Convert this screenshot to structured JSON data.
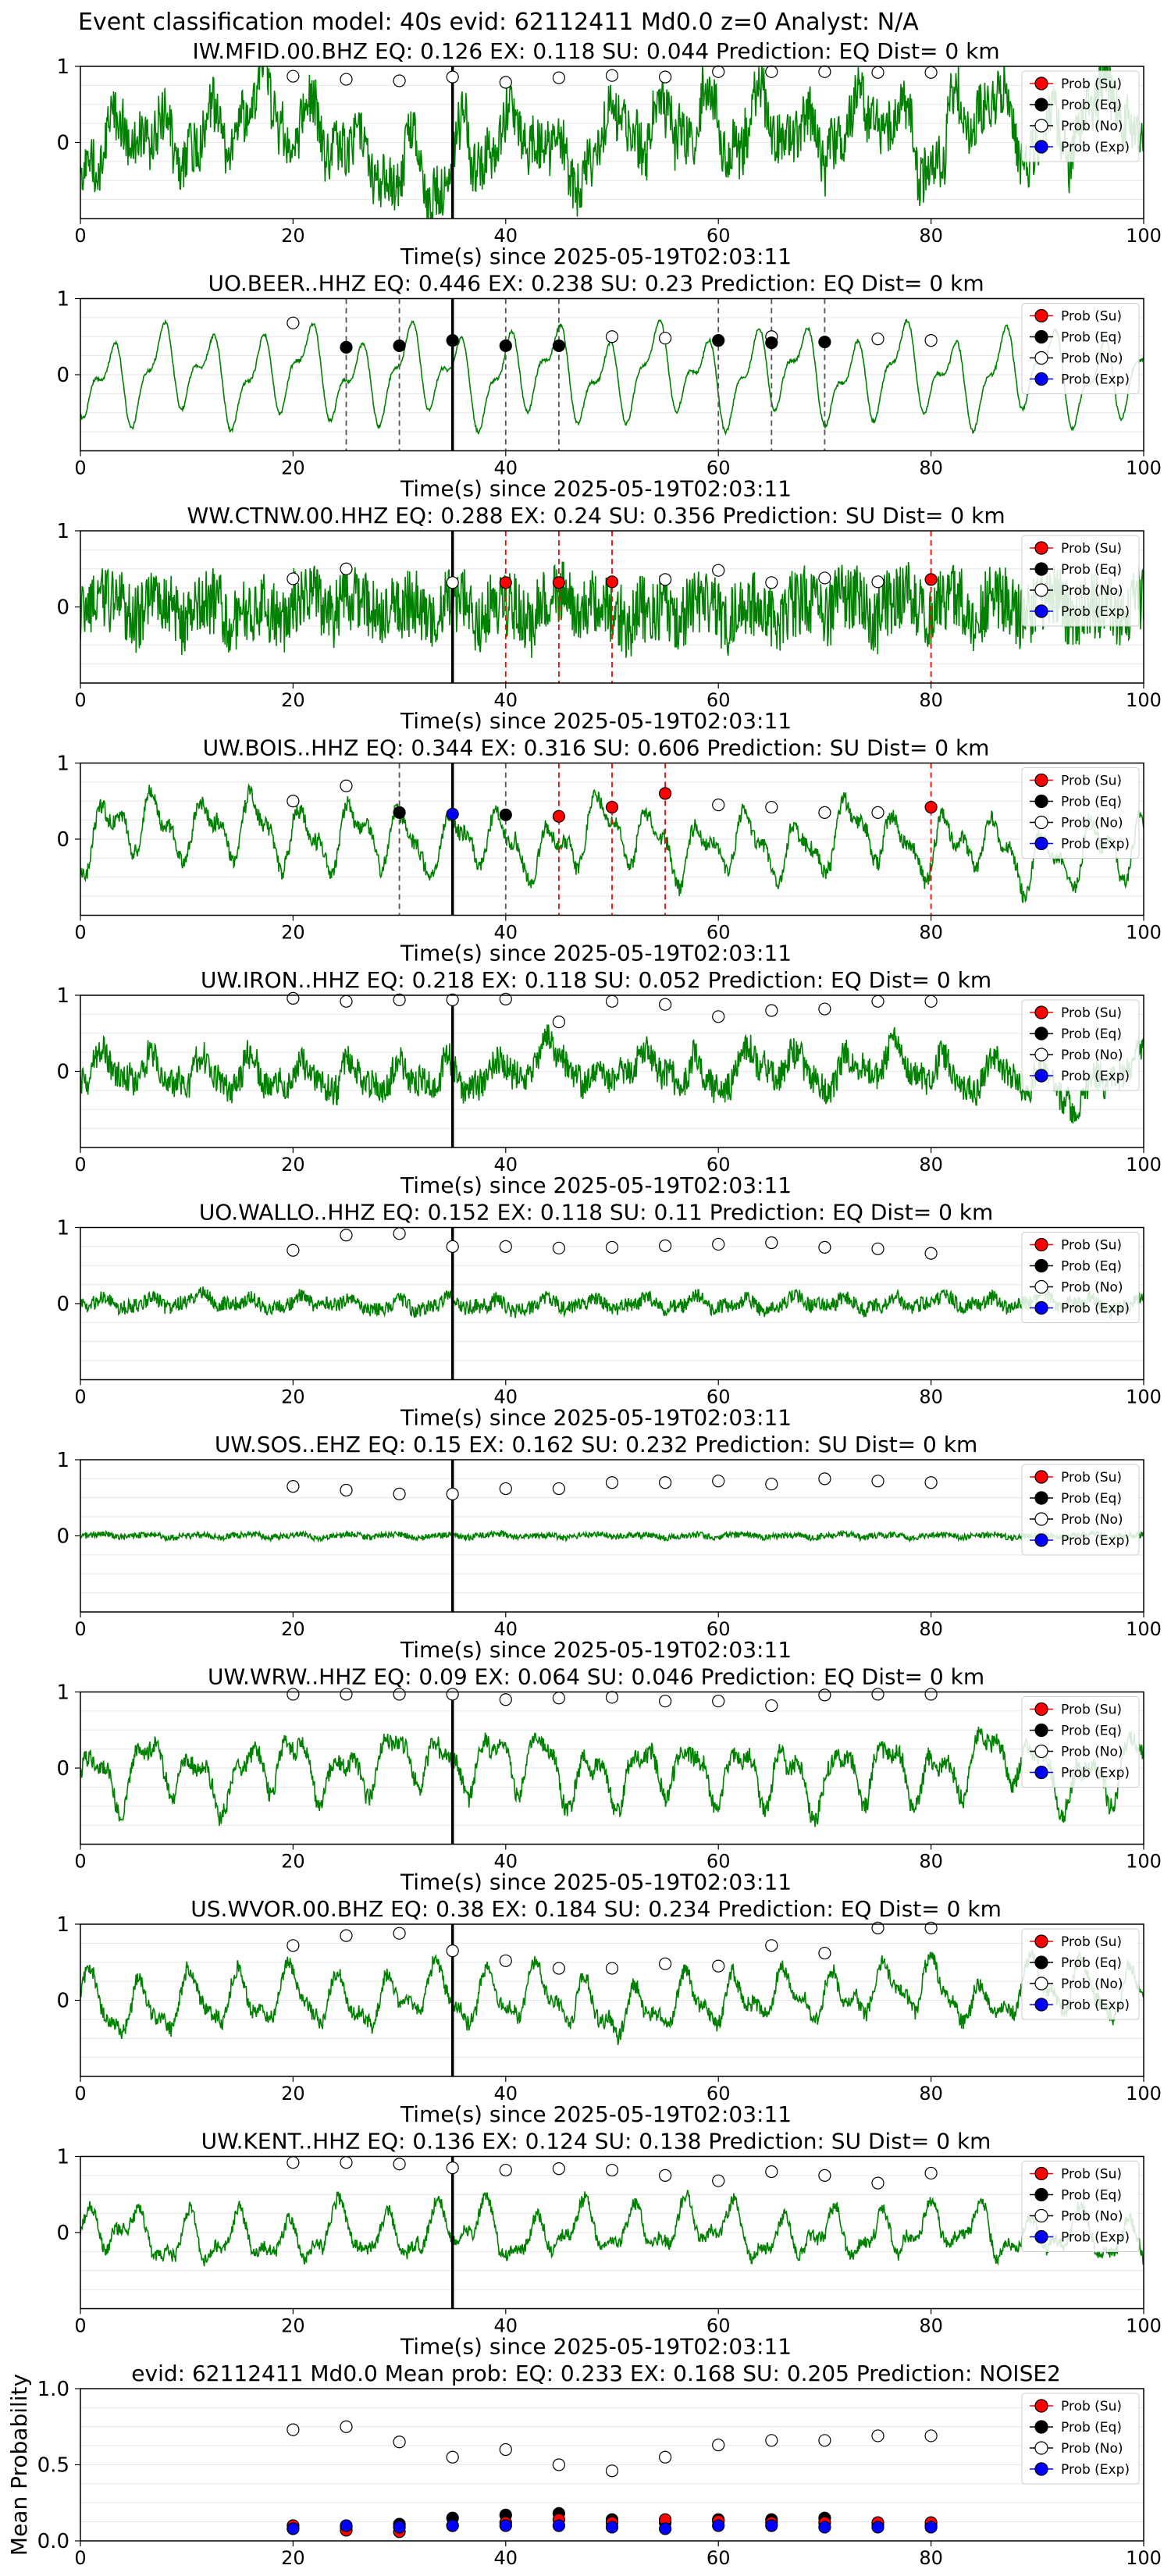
{
  "suptitle": "Event classification model: 40s evid: 62112411 Md0.0 z=0 Analyst: N/A",
  "colors": {
    "waveform": "#008000",
    "su": "#ff0000",
    "eq": "#000000",
    "no": "#ffffff",
    "exp": "#0000ff",
    "eq_pick_line": "#555555",
    "su_pick_line": "#ff0000",
    "origin_line": "#000000"
  },
  "legend_labels": [
    "Prob (Su)",
    "Prob (Eq)",
    "Prob (No)",
    "Prob (Exp)"
  ],
  "chart_data": [
    {
      "type": "line",
      "title": "IW.MFID.00.BHZ   EQ: 0.126  EX: 0.118  SU: 0.044   Prediction: EQ    Dist= 0 km",
      "xlabel": "Time(s) since 2025-05-19T02:03:11",
      "xlim": [
        0,
        100
      ],
      "ylim": [
        -1,
        1
      ],
      "xticks": [
        0,
        20,
        40,
        60,
        80,
        100
      ],
      "yticks": [
        0,
        1
      ],
      "origin_time": 35,
      "style": {
        "amp": 0.5,
        "noise": 0.45,
        "lowfreq": 0.25
      },
      "prob_times": [
        20,
        25,
        30,
        35,
        40,
        45,
        50,
        55,
        60,
        65,
        70,
        75,
        80
      ],
      "prob_no": [
        0.87,
        0.83,
        0.81,
        0.86,
        0.79,
        0.85,
        0.88,
        0.86,
        0.93,
        0.93,
        0.93,
        0.92,
        0.92
      ],
      "prob_eq": [],
      "prob_su": [],
      "prob_exp": [],
      "eq_picks": [],
      "su_picks": [],
      "legend": "upper right"
    },
    {
      "type": "line",
      "title": "UO.BEER..HHZ   EQ: 0.446  EX: 0.238  SU: 0.23   Prediction: EQ    Dist= 0 km",
      "xlabel": "Time(s) since 2025-05-19T02:03:11",
      "xlim": [
        0,
        100
      ],
      "ylim": [
        -1,
        1
      ],
      "xticks": [
        0,
        20,
        40,
        60,
        80,
        100
      ],
      "yticks": [
        0,
        1
      ],
      "origin_time": 35,
      "style": {
        "amp": 0.75,
        "noise": 0.03,
        "lowfreq": 0.0
      },
      "prob_times": [
        20,
        50,
        55,
        65,
        75,
        80
      ],
      "prob_no": [
        0.68,
        0.5,
        0.48,
        0.5,
        0.47,
        0.45
      ],
      "eq_picks": [
        25,
        30,
        40,
        45,
        60,
        65,
        70
      ],
      "prob_eq": [
        [
          25,
          0.36
        ],
        [
          30,
          0.38
        ],
        [
          35,
          0.45
        ],
        [
          40,
          0.38
        ],
        [
          45,
          0.38
        ],
        [
          60,
          0.45
        ],
        [
          65,
          0.42
        ],
        [
          70,
          0.43
        ]
      ],
      "prob_su": [],
      "prob_exp": [],
      "su_picks": [],
      "legend": "upper right"
    },
    {
      "type": "line",
      "title": "WW.CTNW.00.HHZ   EQ: 0.288  EX: 0.24  SU: 0.356   Prediction: SU    Dist= 0 km",
      "xlabel": "Time(s) since 2025-05-19T02:03:11",
      "xlim": [
        0,
        100
      ],
      "ylim": [
        -1,
        1
      ],
      "xticks": [
        0,
        20,
        40,
        60,
        80,
        100
      ],
      "yticks": [
        0,
        1
      ],
      "origin_time": 35,
      "style": {
        "amp": 0.2,
        "noise": 0.55,
        "lowfreq": 0.05
      },
      "prob_times": [
        20,
        25,
        35,
        55,
        60,
        65,
        70,
        75
      ],
      "prob_no": [
        0.37,
        0.5,
        0.32,
        0.36,
        0.48,
        0.32,
        0.38,
        0.33
      ],
      "eq_picks": [],
      "prob_eq": [],
      "su_picks": [
        40,
        45,
        50,
        80
      ],
      "prob_su": [
        [
          40,
          0.32
        ],
        [
          45,
          0.32
        ],
        [
          50,
          0.33
        ],
        [
          80,
          0.36
        ]
      ],
      "prob_exp": [],
      "legend": "upper right"
    },
    {
      "type": "line",
      "title": "UW.BOIS..HHZ   EQ: 0.344  EX: 0.316  SU: 0.606   Prediction: SU    Dist= 0 km",
      "xlabel": "Time(s) since 2025-05-19T02:03:11",
      "xlim": [
        0,
        100
      ],
      "ylim": [
        -1,
        1
      ],
      "xticks": [
        0,
        20,
        40,
        60,
        80,
        100
      ],
      "yticks": [
        0,
        1
      ],
      "origin_time": 35,
      "style": {
        "amp": 0.55,
        "noise": 0.12,
        "lowfreq": 0.1
      },
      "prob_times": [
        20,
        25,
        60,
        65,
        70,
        75
      ],
      "prob_no": [
        0.5,
        0.7,
        0.45,
        0.42,
        0.35,
        0.35
      ],
      "eq_picks": [
        30,
        40
      ],
      "prob_eq": [
        [
          30,
          0.35
        ],
        [
          40,
          0.32
        ]
      ],
      "su_picks": [
        45,
        50,
        55,
        80
      ],
      "prob_su": [
        [
          45,
          0.3
        ],
        [
          50,
          0.42
        ],
        [
          55,
          0.6
        ],
        [
          80,
          0.42
        ]
      ],
      "prob_exp": [
        [
          35,
          0.33
        ]
      ],
      "legend": "upper right"
    },
    {
      "type": "line",
      "title": "UW.IRON..HHZ   EQ: 0.218  EX: 0.118  SU: 0.052   Prediction: EQ    Dist= 0 km",
      "xlabel": "Time(s) since 2025-05-19T02:03:11",
      "xlim": [
        0,
        100
      ],
      "ylim": [
        -1,
        1
      ],
      "xticks": [
        0,
        20,
        40,
        60,
        80,
        100
      ],
      "yticks": [
        0,
        1
      ],
      "origin_time": 35,
      "style": {
        "amp": 0.28,
        "noise": 0.25,
        "lowfreq": 0.1
      },
      "prob_times": [
        20,
        25,
        30,
        35,
        40,
        45,
        50,
        55,
        60,
        65,
        70,
        75,
        80
      ],
      "prob_no": [
        0.96,
        0.92,
        0.94,
        0.94,
        0.95,
        0.65,
        0.92,
        0.88,
        0.72,
        0.8,
        0.82,
        0.92,
        0.92
      ],
      "eq_picks": [],
      "prob_eq": [],
      "su_picks": [],
      "prob_su": [],
      "prob_exp": [],
      "legend": "upper right"
    },
    {
      "type": "line",
      "title": "UO.WALLO..HHZ   EQ: 0.152  EX: 0.118  SU: 0.11   Prediction: EQ    Dist= 0 km",
      "xlabel": "Time(s) since 2025-05-19T02:03:11",
      "xlim": [
        0,
        100
      ],
      "ylim": [
        -1,
        1
      ],
      "xticks": [
        0,
        20,
        40,
        60,
        80,
        100
      ],
      "yticks": [
        0,
        1
      ],
      "origin_time": 35,
      "style": {
        "amp": 0.1,
        "noise": 0.12,
        "lowfreq": 0.02
      },
      "prob_times": [
        20,
        25,
        30,
        35,
        40,
        45,
        50,
        55,
        60,
        65,
        70,
        75,
        80
      ],
      "prob_no": [
        0.7,
        0.9,
        0.92,
        0.75,
        0.75,
        0.73,
        0.74,
        0.76,
        0.78,
        0.8,
        0.74,
        0.72,
        0.66
      ],
      "eq_picks": [],
      "prob_eq": [],
      "su_picks": [],
      "prob_su": [],
      "prob_exp": [],
      "legend": "upper right"
    },
    {
      "type": "line",
      "title": "UW.SOS..EHZ   EQ: 0.15  EX: 0.162  SU: 0.232   Prediction: SU    Dist= 0 km",
      "xlabel": "Time(s) since 2025-05-19T02:03:11",
      "xlim": [
        0,
        100
      ],
      "ylim": [
        -1,
        1
      ],
      "xticks": [
        0,
        20,
        40,
        60,
        80,
        100
      ],
      "yticks": [
        0,
        1
      ],
      "origin_time": 35,
      "style": {
        "amp": 0.03,
        "noise": 0.05,
        "lowfreq": 0.0
      },
      "prob_times": [
        20,
        25,
        30,
        35,
        40,
        45,
        50,
        55,
        60,
        65,
        70,
        75,
        80
      ],
      "prob_no": [
        0.65,
        0.6,
        0.55,
        0.55,
        0.62,
        0.62,
        0.7,
        0.7,
        0.72,
        0.68,
        0.75,
        0.72,
        0.7
      ],
      "eq_picks": [],
      "prob_eq": [],
      "su_picks": [],
      "prob_su": [],
      "prob_exp": [],
      "legend": "upper right"
    },
    {
      "type": "line",
      "title": "UW.WRW..HHZ   EQ: 0.09  EX: 0.064  SU: 0.046   Prediction: EQ    Dist= 0 km",
      "xlabel": "Time(s) since 2025-05-19T02:03:11",
      "xlim": [
        0,
        100
      ],
      "ylim": [
        -1,
        1
      ],
      "xticks": [
        0,
        20,
        40,
        60,
        80,
        100
      ],
      "yticks": [
        0,
        1
      ],
      "origin_time": 35,
      "style": {
        "amp": 0.5,
        "noise": 0.15,
        "lowfreq": 0.1
      },
      "prob_times": [
        20,
        25,
        30,
        35,
        40,
        45,
        50,
        55,
        60,
        65,
        70,
        75,
        80
      ],
      "prob_no": [
        0.97,
        0.97,
        0.97,
        0.97,
        0.9,
        0.92,
        0.93,
        0.88,
        0.88,
        0.82,
        0.96,
        0.97,
        0.97
      ],
      "eq_picks": [],
      "prob_eq": [],
      "su_picks": [],
      "prob_su": [],
      "prob_exp": [],
      "legend": "upper right"
    },
    {
      "type": "line",
      "title": "US.WVOR.00.BHZ   EQ: 0.38  EX: 0.184  SU: 0.234   Prediction: EQ    Dist= 0 km",
      "xlabel": "Time(s) since 2025-05-19T02:03:11",
      "xlim": [
        0,
        100
      ],
      "ylim": [
        -1,
        1
      ],
      "xticks": [
        0,
        20,
        40,
        60,
        80,
        100
      ],
      "yticks": [
        0,
        1
      ],
      "origin_time": 35,
      "style": {
        "amp": 0.45,
        "noise": 0.12,
        "lowfreq": 0.1
      },
      "prob_times": [
        20,
        25,
        30,
        35,
        40,
        45,
        50,
        55,
        60,
        65,
        70,
        75,
        80
      ],
      "prob_no": [
        0.72,
        0.85,
        0.88,
        0.65,
        0.52,
        0.42,
        0.42,
        0.48,
        0.45,
        0.72,
        0.62,
        0.95,
        0.95
      ],
      "eq_picks": [],
      "prob_eq": [],
      "su_picks": [],
      "prob_su": [],
      "prob_exp": [],
      "legend": "upper right"
    },
    {
      "type": "line",
      "title": "UW.KENT..HHZ   EQ: 0.136  EX: 0.124  SU: 0.138   Prediction: SU    Dist= 0 km",
      "xlabel": "Time(s) since 2025-05-19T02:03:11",
      "xlim": [
        0,
        100
      ],
      "ylim": [
        -1,
        1
      ],
      "xticks": [
        0,
        20,
        40,
        60,
        80,
        100
      ],
      "yticks": [
        0,
        1
      ],
      "origin_time": 35,
      "style": {
        "amp": 0.42,
        "noise": 0.1,
        "lowfreq": 0.1
      },
      "prob_times": [
        20,
        25,
        30,
        35,
        40,
        45,
        50,
        55,
        60,
        65,
        70,
        75,
        80
      ],
      "prob_no": [
        0.92,
        0.92,
        0.9,
        0.85,
        0.82,
        0.84,
        0.82,
        0.75,
        0.68,
        0.8,
        0.75,
        0.65,
        0.78
      ],
      "eq_picks": [],
      "prob_eq": [],
      "su_picks": [],
      "prob_su": [],
      "prob_exp": [],
      "legend": "upper right"
    },
    {
      "type": "scatter",
      "title": "evid: 62112411  Md0.0   Mean prob:   EQ: 0.233  EX: 0.168  SU: 0.205   Prediction: NOISE2",
      "ylabel": "Mean Probability",
      "xlim": [
        0,
        100
      ],
      "ylim": [
        0,
        1
      ],
      "xticks": [
        0,
        20,
        40,
        60,
        80,
        100
      ],
      "yticks": [
        0.0,
        0.5,
        1.0
      ],
      "x": [
        20,
        25,
        30,
        35,
        40,
        45,
        50,
        55,
        60,
        65,
        70,
        75,
        80
      ],
      "series": [
        {
          "name": "Prob (Su)",
          "values": [
            0.1,
            0.07,
            0.06,
            0.1,
            0.12,
            0.14,
            0.12,
            0.14,
            0.13,
            0.12,
            0.12,
            0.12,
            0.12
          ]
        },
        {
          "name": "Prob (Eq)",
          "values": [
            0.08,
            0.09,
            0.11,
            0.15,
            0.17,
            0.18,
            0.14,
            0.12,
            0.14,
            0.14,
            0.15,
            0.11,
            0.1
          ]
        },
        {
          "name": "Prob (No)",
          "values": [
            0.73,
            0.75,
            0.65,
            0.55,
            0.6,
            0.5,
            0.46,
            0.55,
            0.63,
            0.66,
            0.66,
            0.69,
            0.69
          ]
        },
        {
          "name": "Prob (Exp)",
          "values": [
            0.08,
            0.1,
            0.09,
            0.1,
            0.1,
            0.1,
            0.09,
            0.08,
            0.1,
            0.1,
            0.09,
            0.09,
            0.09
          ]
        }
      ],
      "legend": "upper right"
    }
  ]
}
